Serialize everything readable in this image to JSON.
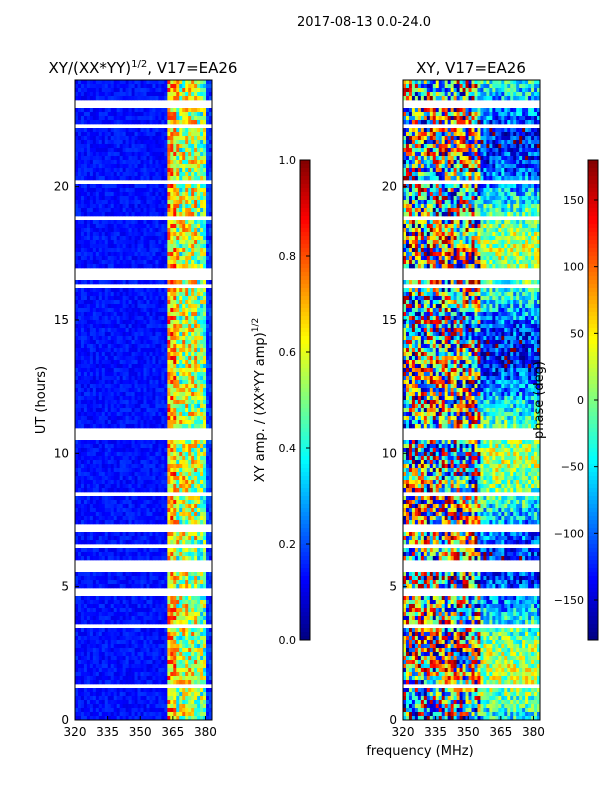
{
  "suptitle": "2017-08-13 0.0-24.0",
  "chart_data": [
    {
      "type": "heatmap",
      "title": "XY/(XX*YY)^{1/2}, V17=EA26",
      "title_main": "XY/(XX*YY)",
      "title_sup": "1/2",
      "title_tail": ", V17=EA26",
      "xlabel": "",
      "ylabel": "UT (hours)",
      "xlim": [
        320,
        383
      ],
      "ylim": [
        0,
        24
      ],
      "xticks": [
        320,
        335,
        350,
        365,
        380
      ],
      "yticks": [
        0,
        5,
        10,
        15,
        20
      ],
      "colorbar": {
        "label": "XY amp. / (XX*YY amp)^{1/2}",
        "label_main": "XY amp. / (XX*YY amp)",
        "label_sup": "1/2",
        "range": [
          0.0,
          1.0
        ],
        "ticks": [
          "0.0",
          "0.2",
          "0.4",
          "0.6",
          "0.8",
          "1.0"
        ],
        "colormap": "jet"
      },
      "flagged_hours": [
        [
          23.0,
          23.3
        ],
        [
          10.5,
          11.0
        ],
        [
          5.6,
          6.05
        ],
        [
          4.6,
          4.95
        ],
        [
          7.1,
          7.3
        ],
        [
          6.5,
          6.6
        ],
        [
          17.0,
          16.5
        ],
        [
          22.2,
          22.3
        ],
        [
          21.4,
          21.5
        ],
        [
          20.1,
          20.2
        ],
        [
          18.8,
          18.9
        ],
        [
          16.2,
          16.3
        ],
        [
          15.1,
          15.2
        ],
        [
          13.0,
          13.1
        ],
        [
          10.0,
          10.05
        ],
        [
          8.4,
          8.5
        ],
        [
          3.5,
          3.6
        ],
        [
          1.2,
          1.3
        ],
        [
          0.4,
          0.5
        ]
      ]
    },
    {
      "type": "heatmap",
      "title": "XY, V17=EA26",
      "xlabel": "frequency (MHz)",
      "ylabel": "",
      "xlim": [
        320,
        383
      ],
      "ylim": [
        0,
        24
      ],
      "xticks": [
        320,
        335,
        350,
        365,
        380
      ],
      "yticks": [
        0,
        5,
        10,
        15,
        20
      ],
      "colorbar": {
        "label": "phase (deg)",
        "range": [
          -180,
          180
        ],
        "ticks": [
          "150",
          "100",
          "50",
          "0",
          "−50",
          "−100",
          "−150"
        ],
        "colormap": "jet"
      },
      "flagged_hours": [
        [
          23.0,
          23.3
        ],
        [
          10.5,
          11.0
        ],
        [
          5.6,
          6.05
        ],
        [
          4.6,
          4.95
        ],
        [
          7.1,
          7.3
        ],
        [
          6.5,
          6.6
        ],
        [
          17.0,
          16.5
        ],
        [
          22.2,
          22.3
        ],
        [
          21.4,
          21.5
        ],
        [
          20.1,
          20.2
        ],
        [
          18.8,
          18.9
        ],
        [
          16.2,
          16.3
        ],
        [
          15.1,
          15.2
        ],
        [
          13.0,
          13.1
        ],
        [
          10.0,
          10.05
        ],
        [
          8.4,
          8.5
        ],
        [
          3.5,
          3.6
        ],
        [
          1.2,
          1.3
        ],
        [
          0.4,
          0.5
        ]
      ]
    }
  ]
}
